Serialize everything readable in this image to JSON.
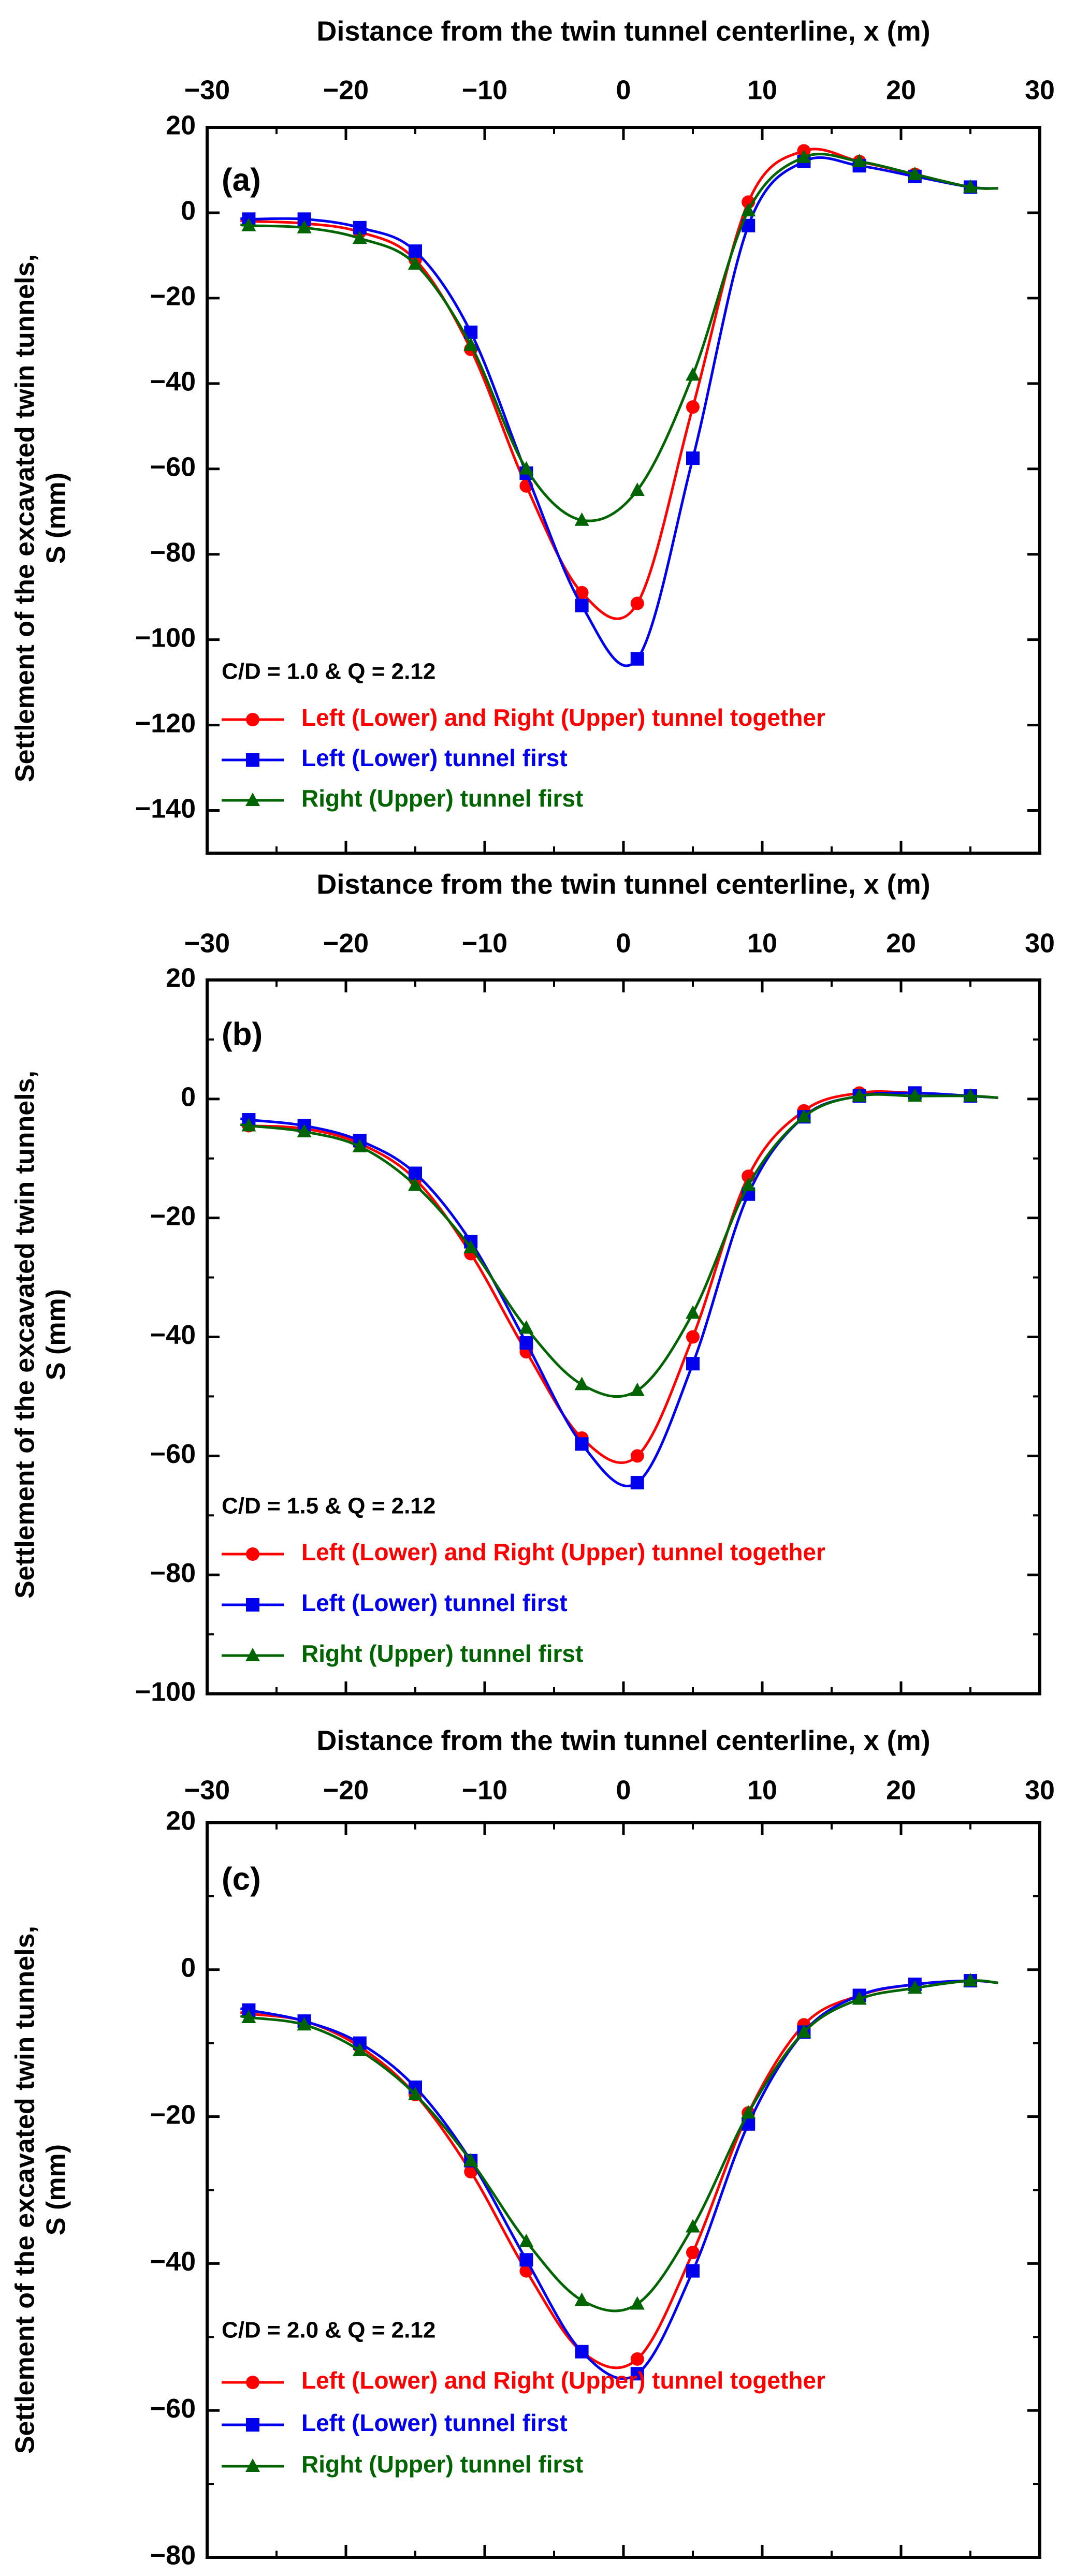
{
  "figure": {
    "x_axis_title": "Distance from the twin tunnel centerline, x (m)",
    "y_axis_title_line1": "Settlement of the excavated twin tunnels,",
    "y_axis_title_line2": "S (mm)",
    "legend": [
      "Left (Lower) and Right (Upper) tunnel together",
      "Left (Lower) tunnel first",
      "Right (Upper) tunnel first"
    ]
  },
  "colors": {
    "together": "#ff0000",
    "left_first": "#0000ee",
    "right_first": "#006400"
  },
  "chart_data": [
    {
      "type": "line",
      "panel_label": "(a)",
      "condition": "C/D = 1.0 & Q = 2.12",
      "xlabel": "Distance from the twin tunnel centerline, x (m)",
      "ylabel": "Settlement of the excavated twin tunnels, S (mm)",
      "xlim": [
        -30,
        30
      ],
      "ylim": [
        -150,
        20
      ],
      "xticks": [
        -30,
        -20,
        -10,
        0,
        10,
        20,
        30
      ],
      "yticks": [
        20,
        0,
        -20,
        -40,
        -60,
        -80,
        -100,
        -120,
        -140
      ],
      "legend_position": "lower-left",
      "series": [
        {
          "name": "Left (Lower) and Right (Upper) tunnel together",
          "color": "#ff0000",
          "marker": "circle",
          "x": [
            -27,
            -23,
            -19,
            -15,
            -11,
            -7,
            -3,
            1,
            5,
            9,
            13,
            17,
            21,
            25
          ],
          "y": [
            -2,
            -2.5,
            -4.5,
            -11,
            -32,
            -64,
            -89,
            -91.5,
            -45.5,
            2.5,
            14.5,
            12,
            9,
            6
          ]
        },
        {
          "name": "Left (Lower) tunnel first",
          "color": "#0000ee",
          "marker": "square",
          "x": [
            -27,
            -23,
            -19,
            -15,
            -11,
            -7,
            -3,
            1,
            5,
            9,
            13,
            17,
            21,
            25
          ],
          "y": [
            -1.5,
            -1.5,
            -3.5,
            -9,
            -28,
            -61,
            -92,
            -104.5,
            -57.5,
            -3,
            12,
            11,
            8.5,
            6
          ]
        },
        {
          "name": "Right (Upper) tunnel first",
          "color": "#006400",
          "marker": "triangle",
          "x": [
            -27,
            -23,
            -19,
            -15,
            -11,
            -7,
            -3,
            1,
            5,
            9,
            13,
            17,
            21,
            25
          ],
          "y": [
            -3,
            -3.5,
            -6,
            -12,
            -31,
            -60,
            -72,
            -65,
            -38,
            0.5,
            13,
            12,
            9,
            6
          ]
        }
      ]
    },
    {
      "type": "line",
      "panel_label": "(b)",
      "condition": "C/D = 1.5 & Q = 2.12",
      "xlabel": "Distance from the twin tunnel centerline, x (m)",
      "ylabel": "Settlement of the excavated twin tunnels, S (mm)",
      "xlim": [
        -30,
        30
      ],
      "ylim": [
        -100,
        20
      ],
      "xticks": [
        -30,
        -20,
        -10,
        0,
        10,
        20,
        30
      ],
      "yticks": [
        20,
        0,
        -20,
        -40,
        -60,
        -80,
        -100
      ],
      "legend_position": "lower-left",
      "series": [
        {
          "name": "Left (Lower) and Right (Upper) tunnel together",
          "color": "#ff0000",
          "marker": "circle",
          "x": [
            -27,
            -23,
            -19,
            -15,
            -11,
            -7,
            -3,
            1,
            5,
            9,
            13,
            17,
            21,
            25
          ],
          "y": [
            -4.5,
            -5,
            -7.5,
            -13.5,
            -26,
            -42.5,
            -57,
            -60,
            -40,
            -13,
            -2,
            1,
            1,
            0.5
          ]
        },
        {
          "name": "Left (Lower) tunnel first",
          "color": "#0000ee",
          "marker": "square",
          "x": [
            -27,
            -23,
            -19,
            -15,
            -11,
            -7,
            -3,
            1,
            5,
            9,
            13,
            17,
            21,
            25
          ],
          "y": [
            -3.5,
            -4.5,
            -7,
            -12.5,
            -24,
            -41,
            -58,
            -64.5,
            -44.5,
            -16,
            -3,
            0.5,
            1,
            0.5
          ]
        },
        {
          "name": "Right (Upper) tunnel first",
          "color": "#006400",
          "marker": "triangle",
          "x": [
            -27,
            -23,
            -19,
            -15,
            -11,
            -7,
            -3,
            1,
            5,
            9,
            13,
            17,
            21,
            25
          ],
          "y": [
            -4.5,
            -5.5,
            -8,
            -14.5,
            -25,
            -38.5,
            -48,
            -49,
            -36,
            -14.5,
            -3,
            0.5,
            0.5,
            0.5
          ]
        }
      ]
    },
    {
      "type": "line",
      "panel_label": "(c)",
      "condition": "C/D = 2.0 & Q = 2.12",
      "xlabel": "Distance from the twin tunnel centerline, x (m)",
      "ylabel": "Settlement of the excavated twin tunnels, S (mm)",
      "xlim": [
        -30,
        30
      ],
      "ylim": [
        -80,
        20
      ],
      "xticks": [
        -30,
        -20,
        -10,
        0,
        10,
        20,
        30
      ],
      "yticks": [
        20,
        0,
        -20,
        -40,
        -60,
        -80
      ],
      "legend_position": "lower-left",
      "series": [
        {
          "name": "Left (Lower) and Right (Upper) tunnel together",
          "color": "#ff0000",
          "marker": "circle",
          "x": [
            -27,
            -23,
            -19,
            -15,
            -11,
            -7,
            -3,
            1,
            5,
            9,
            13,
            17,
            21,
            25
          ],
          "y": [
            -6,
            -7,
            -10.5,
            -17,
            -27.5,
            -41,
            -52,
            -53,
            -38.5,
            -19.5,
            -7.5,
            -3.5,
            -2,
            -1.5
          ]
        },
        {
          "name": "Left (Lower) tunnel first",
          "color": "#0000ee",
          "marker": "square",
          "x": [
            -27,
            -23,
            -19,
            -15,
            -11,
            -7,
            -3,
            1,
            5,
            9,
            13,
            17,
            21,
            25
          ],
          "y": [
            -5.5,
            -7,
            -10,
            -16,
            -26,
            -39.5,
            -52,
            -55,
            -41,
            -21,
            -8.5,
            -3.5,
            -2,
            -1.5
          ]
        },
        {
          "name": "Right (Upper) tunnel first",
          "color": "#006400",
          "marker": "triangle",
          "x": [
            -27,
            -23,
            -19,
            -15,
            -11,
            -7,
            -3,
            1,
            5,
            9,
            13,
            17,
            21,
            25
          ],
          "y": [
            -6.5,
            -7.5,
            -11,
            -17,
            -26,
            -37,
            -45,
            -45.5,
            -35,
            -19.5,
            -8.5,
            -4,
            -2.5,
            -1.5
          ]
        }
      ]
    }
  ]
}
